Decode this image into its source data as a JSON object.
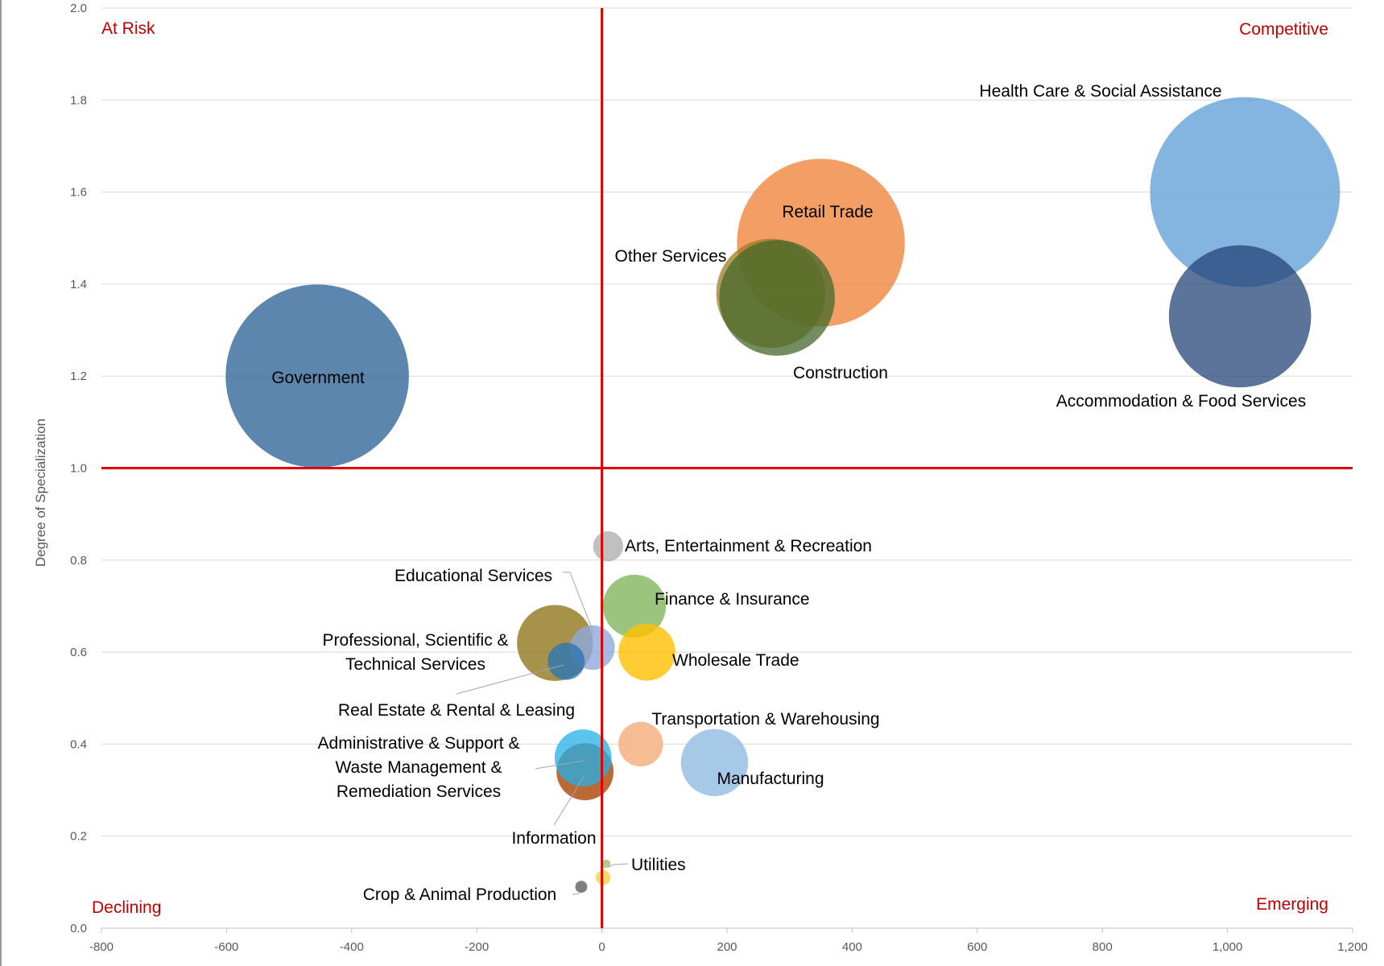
{
  "chart_data": {
    "type": "bubble",
    "xlim": [
      -800,
      1200
    ],
    "ylim": [
      0.0,
      2.0
    ],
    "xlabel": "",
    "ylabel": "Degree of Specialization",
    "x_ticks": [
      -800,
      -600,
      -400,
      -200,
      0,
      200,
      400,
      600,
      800,
      1000,
      1200
    ],
    "x_tick_labels": [
      "-800",
      "-600",
      "-400",
      "-200",
      "0",
      "200",
      "400",
      "600",
      "800",
      "1,000",
      "1,200"
    ],
    "y_ticks": [
      0.0,
      0.2,
      0.4,
      0.6,
      0.8,
      1.0,
      1.2,
      1.4,
      1.6,
      1.8,
      2.0
    ],
    "y_tick_labels": [
      "0.0",
      "0.2",
      "0.4",
      "0.6",
      "0.8",
      "1.0",
      "1.2",
      "1.4",
      "1.6",
      "1.8",
      "2.0"
    ],
    "grid": true,
    "reference_lines": {
      "x": 0,
      "y": 1.0,
      "color": "#e00000"
    },
    "quadrant_labels": {
      "top_left": "At Risk",
      "top_right": "Competitive",
      "bottom_left": "Declining",
      "bottom_right": "Emerging"
    },
    "series": [
      {
        "name": "Health Care & Social Assistance",
        "label_lines": [
          "Health Care & Social Assistance"
        ],
        "x": 1028,
        "y": 1.6,
        "size": 1000,
        "color": "#5b9bd5",
        "opacity": 0.75
      },
      {
        "name": "Accommodation & Food Services",
        "label_lines": [
          "Accommodation & Food Services"
        ],
        "x": 1020,
        "y": 1.33,
        "size": 560,
        "color": "#264478",
        "opacity": 0.75
      },
      {
        "name": "Retail Trade",
        "label_lines": [
          "Retail Trade"
        ],
        "x": 350,
        "y": 1.49,
        "size": 780,
        "color": "#ed7d31",
        "opacity": 0.75
      },
      {
        "name": "Other Services",
        "label_lines": [
          "Other Services"
        ],
        "x": 270,
        "y": 1.38,
        "size": 330,
        "color": "#9e7a22",
        "opacity": 0.75
      },
      {
        "name": "Construction",
        "label_lines": [
          "Construction"
        ],
        "x": 280,
        "y": 1.37,
        "size": 370,
        "color": "#43682b",
        "opacity": 0.75
      },
      {
        "name": "Government",
        "label_lines": [
          "Government"
        ],
        "x": -455,
        "y": 1.2,
        "size": 930,
        "color": "#255e91",
        "opacity": 0.75
      },
      {
        "name": "Arts, Entertainment & Recreation",
        "label_lines": [
          "Arts, Entertainment & Recreation"
        ],
        "x": 10,
        "y": 0.83,
        "size": 25,
        "color": "#a5a5a5",
        "opacity": 0.7
      },
      {
        "name": "Finance & Insurance",
        "label_lines": [
          "Finance & Insurance"
        ],
        "x": 52,
        "y": 0.7,
        "size": 110,
        "color": "#70ad47",
        "opacity": 0.7
      },
      {
        "name": "Wholesale Trade",
        "label_lines": [
          "Wholesale Trade"
        ],
        "x": 72,
        "y": 0.6,
        "size": 90,
        "color": "#ffc000",
        "opacity": 0.8
      },
      {
        "name": "Professional, Scientific & Technical Services",
        "label_lines": [
          "Professional, Scientific &",
          "Technical Services"
        ],
        "x": -75,
        "y": 0.62,
        "size": 160,
        "color": "#8a6d0c",
        "opacity": 0.75
      },
      {
        "name": "Educational Services",
        "label_lines": [
          "Educational Services"
        ],
        "x": -15,
        "y": 0.61,
        "size": 55,
        "color": "#8faadc",
        "opacity": 0.8
      },
      {
        "name": "Real Estate & Rental & Leasing",
        "label_lines": [
          "Real Estate & Rental & Leasing"
        ],
        "x": -57,
        "y": 0.58,
        "size": 38,
        "color": "#2e75b6",
        "opacity": 0.8
      },
      {
        "name": "Transportation & Warehousing",
        "label_lines": [
          "Transportation & Warehousing"
        ],
        "x": 62,
        "y": 0.4,
        "size": 55,
        "color": "#f4b183",
        "opacity": 0.85
      },
      {
        "name": "Manufacturing",
        "label_lines": [
          "Manufacturing"
        ],
        "x": 180,
        "y": 0.36,
        "size": 125,
        "color": "#9dc3e6",
        "opacity": 0.9
      },
      {
        "name": "Information",
        "label_lines": [
          "Information"
        ],
        "x": -27,
        "y": 0.34,
        "size": 90,
        "color": "#b55a1f",
        "opacity": 0.9
      },
      {
        "name": "Administrative & Support & Waste Management & Remediation Services",
        "label_lines": [
          "Administrative & Support &",
          "Waste Management &",
          "Remediation Services"
        ],
        "x": -30,
        "y": 0.37,
        "size": 90,
        "color": "#21b0e8",
        "opacity": 0.75
      },
      {
        "name": "Utilities",
        "label_lines": [
          "Utilities"
        ],
        "x": 7,
        "y": 0.14,
        "size": 2,
        "color": "#a9d18e",
        "opacity": 1.0
      },
      {
        "name": "Crop & Animal Production",
        "label_lines": [
          "Crop & Animal Production"
        ],
        "x": -33,
        "y": 0.09,
        "size": 4,
        "color": "#7f7f7f",
        "opacity": 1.0
      },
      {
        "name": "(unlabeled)",
        "label_lines": [],
        "x": 2,
        "y": 0.11,
        "size": 6,
        "color": "#ffd966",
        "opacity": 1.0
      }
    ]
  }
}
